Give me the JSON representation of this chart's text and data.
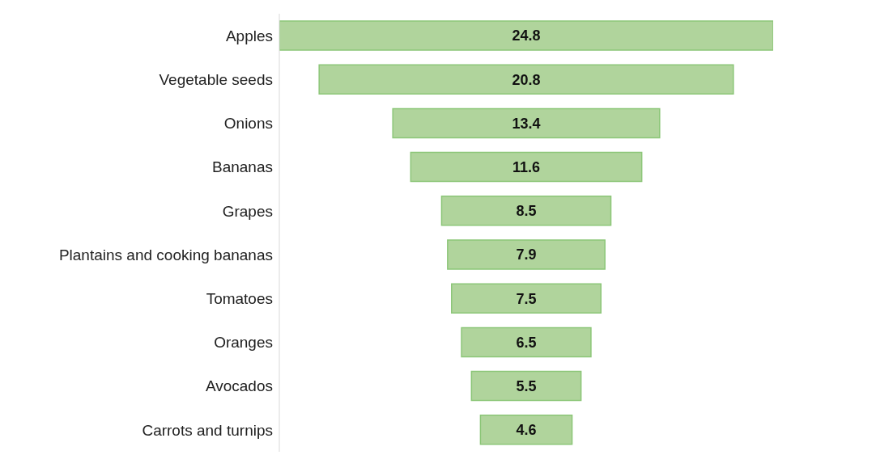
{
  "chart_data": {
    "type": "other",
    "categories": [
      "Apples",
      "Vegetable seeds",
      "Onions",
      "Bananas",
      "Grapes",
      "Plantains and cooking bananas",
      "Tomatoes",
      "Oranges",
      "Avocados",
      "Carrots and turnips"
    ],
    "values": [
      24.8,
      20.8,
      13.4,
      11.6,
      8.5,
      7.9,
      7.5,
      6.5,
      5.5,
      4.6
    ],
    "color": "#b0d49c",
    "data_labels": true
  }
}
